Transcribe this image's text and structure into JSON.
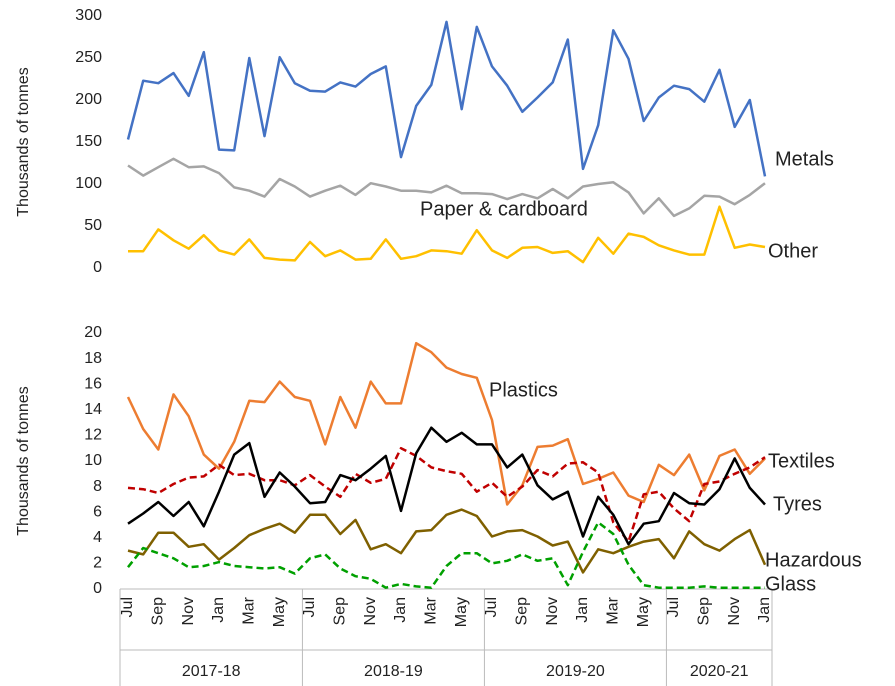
{
  "chart_data": [
    {
      "type": "line",
      "y_label": "Thousands of tonnes",
      "ylim": [
        0,
        300
      ],
      "yticks": [
        0,
        50,
        100,
        150,
        200,
        250,
        300
      ],
      "series": [
        {
          "name": "Metals",
          "color": "#4472c4",
          "style": "solid",
          "values": [
            153,
            223,
            220,
            232,
            205,
            257,
            141,
            140,
            250,
            157,
            251,
            220,
            211,
            210,
            221,
            216,
            231,
            240,
            132,
            193,
            218,
            293,
            189,
            287,
            240,
            217,
            186,
            203,
            221,
            272,
            118,
            170,
            283,
            249,
            175,
            203,
            217,
            213,
            198,
            236,
            168,
            200,
            109
          ]
        },
        {
          "name": "Paper & cardboard",
          "color": "#a5a5a5",
          "style": "solid",
          "values": [
            122,
            110,
            120,
            130,
            120,
            121,
            113,
            96,
            92,
            85,
            106,
            97,
            85,
            92,
            98,
            87,
            101,
            97,
            92,
            92,
            90,
            98,
            89,
            89,
            88,
            82,
            88,
            83,
            94,
            83,
            97,
            100,
            102,
            90,
            65,
            83,
            62,
            71,
            86,
            85,
            76,
            87,
            101
          ]
        },
        {
          "name": "Other",
          "color": "#ffc000",
          "style": "solid",
          "values": [
            20,
            20,
            46,
            33,
            23,
            39,
            21,
            16,
            34,
            12,
            10,
            9,
            31,
            14,
            21,
            10,
            11,
            34,
            11,
            14,
            21,
            20,
            17,
            45,
            21,
            12,
            24,
            25,
            18,
            20,
            7,
            36,
            17,
            41,
            37,
            27,
            21,
            16,
            16,
            73,
            24,
            28,
            25
          ]
        }
      ]
    },
    {
      "type": "line",
      "y_label": "Thousands of tonnes",
      "ylim": [
        0,
        20
      ],
      "yticks": [
        0,
        2,
        4,
        6,
        8,
        10,
        12,
        14,
        16,
        18,
        20
      ],
      "categories": [
        "Jul",
        null,
        "Sep",
        null,
        "Nov",
        null,
        "Jan",
        null,
        "Mar",
        null,
        "May",
        null,
        "Jul",
        null,
        "Sep",
        null,
        "Nov",
        null,
        "Jan",
        null,
        "Mar",
        null,
        "May",
        null,
        "Jul",
        null,
        "Sep",
        null,
        "Nov",
        null,
        "Jan",
        null,
        "Mar",
        null,
        "May",
        null,
        "Jul",
        null,
        "Sep",
        null,
        "Nov",
        null,
        "Jan"
      ],
      "groups": [
        "2017-18",
        "2018-19",
        "2019-20",
        "2020-21"
      ],
      "series": [
        {
          "name": "Plastics",
          "color": "#ed7d31",
          "style": "solid",
          "values": [
            15,
            12.5,
            10.9,
            15.2,
            13.5,
            10.5,
            9.4,
            11.5,
            14.7,
            14.6,
            16.2,
            15,
            14.7,
            11.3,
            15,
            12.6,
            16.2,
            14.5,
            14.5,
            19.2,
            18.5,
            17.3,
            16.8,
            16.5,
            13.2,
            6.6,
            8.1,
            11.1,
            11.2,
            11.7,
            8.2,
            8.6,
            9.1,
            7.3,
            6.8,
            9.7,
            8.9,
            10.5,
            7.7,
            10.4,
            10.9,
            9,
            10.2
          ]
        },
        {
          "name": "Textiles",
          "color": "#c00000",
          "style": "dashed",
          "values": [
            7.9,
            7.8,
            7.5,
            8.2,
            8.7,
            8.8,
            9.7,
            8.9,
            9,
            8.5,
            8.5,
            8.1,
            8.9,
            8,
            7.2,
            9,
            8.3,
            8.6,
            11,
            10.4,
            9.5,
            9.2,
            9,
            7.6,
            8.3,
            7.2,
            8,
            9.3,
            8.8,
            9.8,
            9.9,
            9.1,
            5.2,
            3.7,
            7.4,
            7.6,
            6.3,
            5.3,
            8.2,
            8.4,
            9,
            9.5,
            10.3
          ]
        },
        {
          "name": "Tyres",
          "color": "#000000",
          "style": "solid",
          "values": [
            5.1,
            5.9,
            6.8,
            5.7,
            6.8,
            4.9,
            7.6,
            10.5,
            11.4,
            7.2,
            9.1,
            8,
            6.7,
            6.8,
            8.9,
            8.5,
            9.4,
            10.4,
            6.1,
            10.6,
            12.6,
            11.5,
            12.2,
            11.3,
            11.3,
            9.5,
            10.5,
            8.1,
            7,
            7.6,
            4.1,
            7.2,
            5.8,
            3.5,
            5.1,
            5.3,
            7.5,
            6.7,
            6.6,
            7.8,
            10.2,
            7.9,
            6.6
          ]
        },
        {
          "name": "Hazardous",
          "color": "#7f6000",
          "style": "solid",
          "values": [
            3,
            2.7,
            4.4,
            4.4,
            3.3,
            3.5,
            2.3,
            3.2,
            4.2,
            4.7,
            5.1,
            4.4,
            5.8,
            5.8,
            4.3,
            5.4,
            3.1,
            3.5,
            2.8,
            4.5,
            4.6,
            5.8,
            6.2,
            5.7,
            4.1,
            4.5,
            4.6,
            4.1,
            3.4,
            3.7,
            1.3,
            3.1,
            2.8,
            3.3,
            3.7,
            3.9,
            2.4,
            4.5,
            3.5,
            3,
            3.9,
            4.6,
            1.9
          ]
        },
        {
          "name": "Glass",
          "color": "#00a000",
          "style": "dashed",
          "values": [
            1.7,
            3.2,
            2.8,
            2.4,
            1.7,
            1.8,
            2.1,
            1.8,
            1.7,
            1.6,
            1.7,
            1.2,
            2.4,
            2.7,
            1.6,
            1,
            0.8,
            0.1,
            0.4,
            0.2,
            0.1,
            1.8,
            2.8,
            2.8,
            2,
            2.2,
            2.7,
            2.2,
            2.4,
            0.3,
            2.9,
            5.2,
            4.3,
            1.9,
            0.3,
            0.1,
            0.1,
            0.1,
            0.2,
            0.1,
            0.1,
            0.1,
            0.1
          ]
        }
      ]
    }
  ]
}
